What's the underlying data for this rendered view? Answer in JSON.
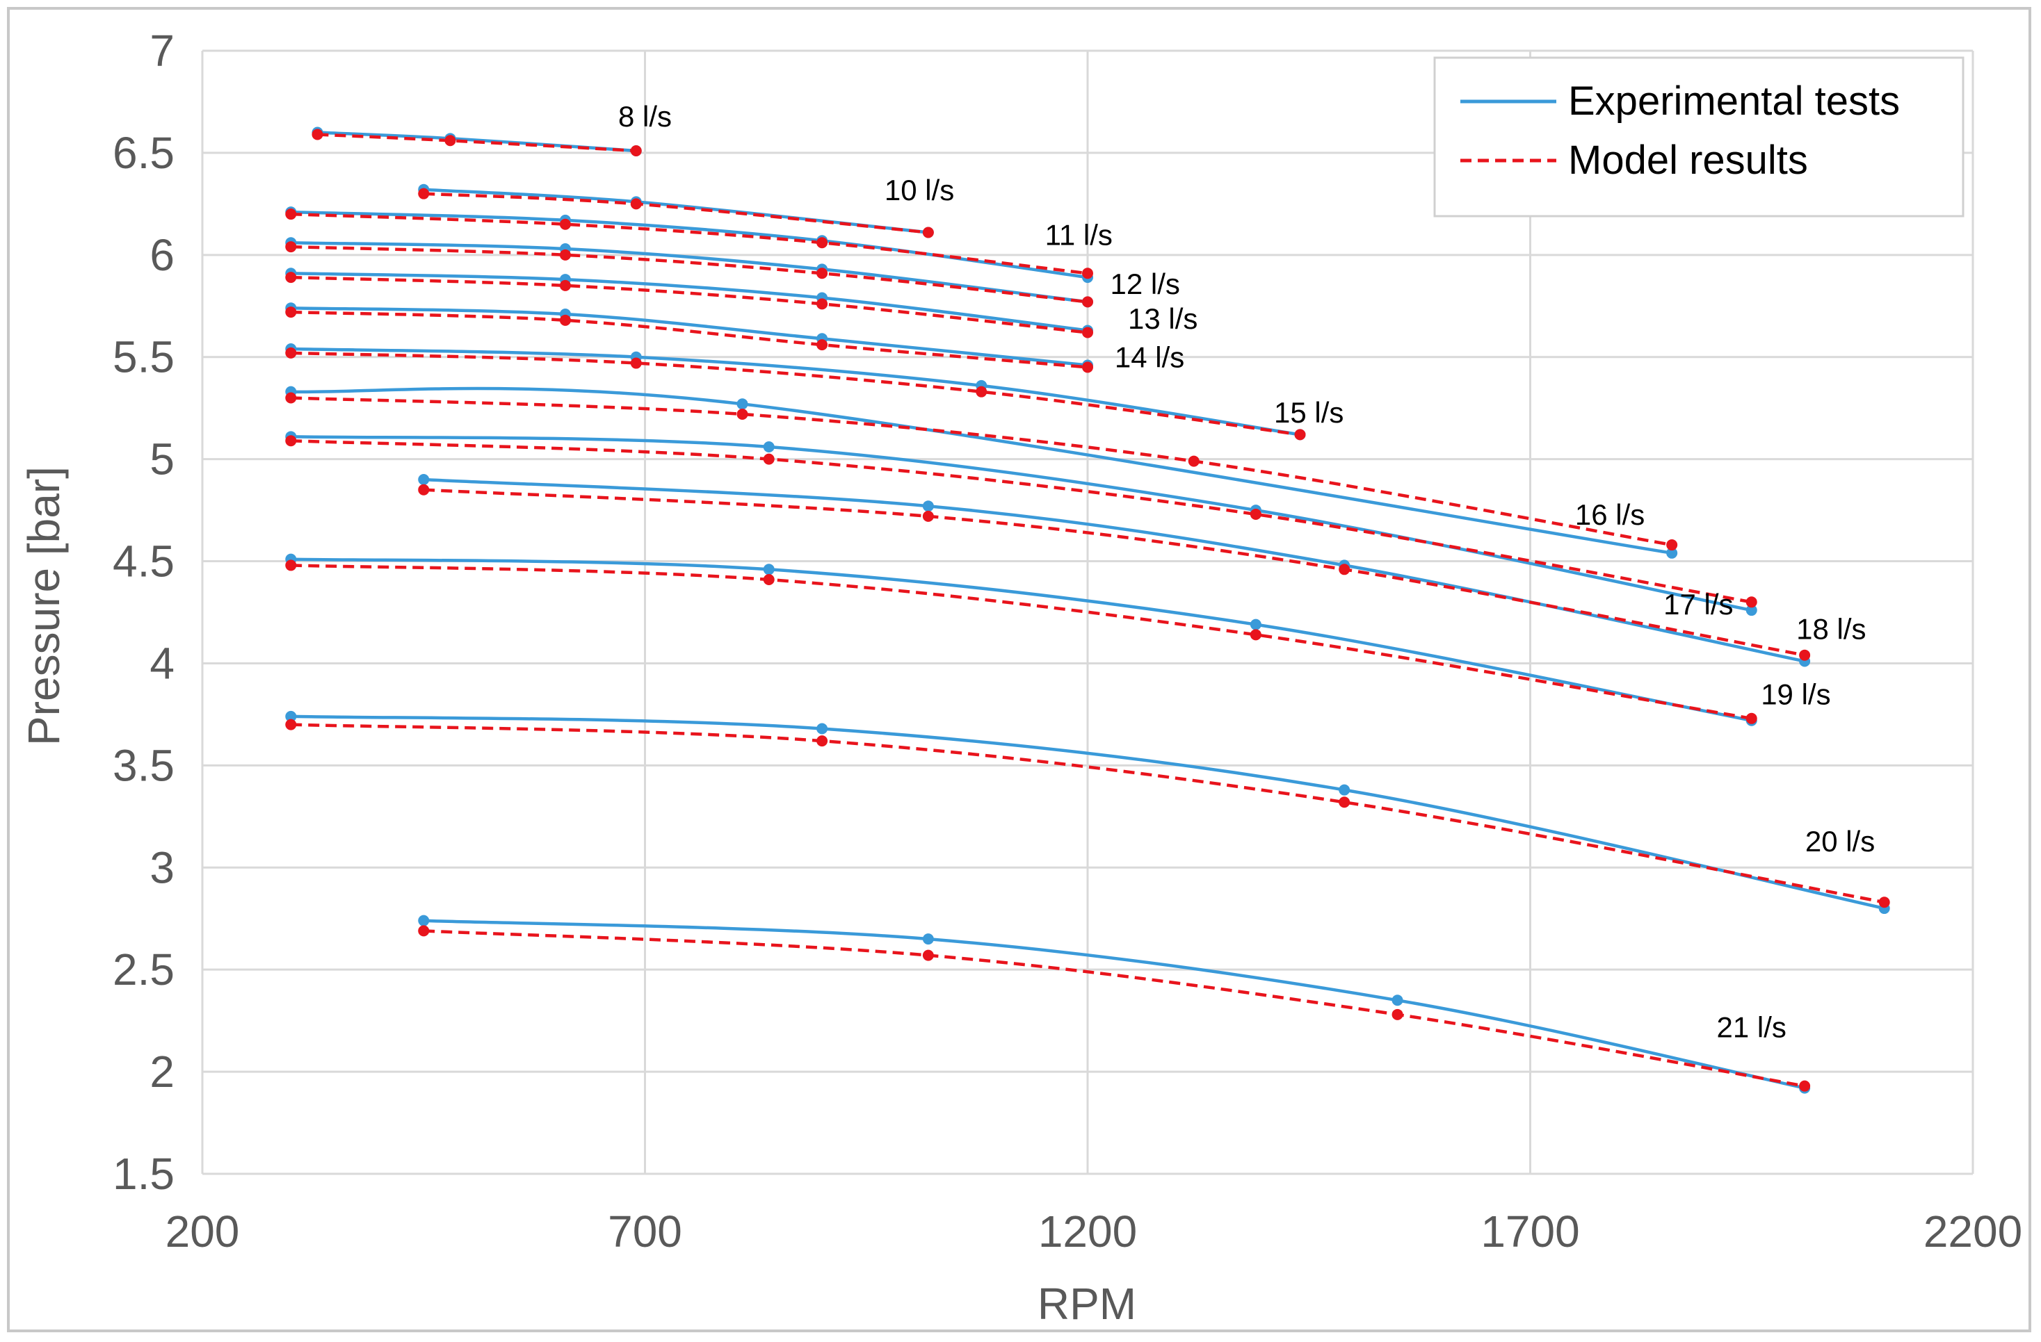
{
  "colors": {
    "experimental": "#3a9ad9",
    "model": "#e8141c",
    "grid": "#d9d9d9",
    "axis_text": "#595959",
    "frame": "#c8c8c8"
  },
  "legend": {
    "items": [
      {
        "label": "Experimental tests",
        "style": "solid",
        "color": "#3a9ad9"
      },
      {
        "label": "Model results",
        "style": "dashed",
        "color": "#e8141c"
      }
    ]
  },
  "chart_data": {
    "type": "line",
    "title": "",
    "xlabel": "RPM",
    "ylabel": "Pressure [bar]",
    "xlim": [
      200,
      2200
    ],
    "ylim": [
      1.5,
      7
    ],
    "xticks": [
      200,
      700,
      1200,
      1700,
      2200
    ],
    "yticks": [
      1.5,
      2,
      2.5,
      3,
      3.5,
      4,
      4.5,
      5,
      5.5,
      6,
      6.5,
      7
    ],
    "ytick_labels": [
      "1.5",
      "2",
      "2.5",
      "3",
      "3.5",
      "4",
      "4.5",
      "5",
      "5.5",
      "6",
      "6.5",
      "7"
    ],
    "xtick_labels": [
      "200",
      "700",
      "1200",
      "1700",
      "2200"
    ],
    "grid": true,
    "legend_position": "top-right",
    "series": [
      {
        "flow": "8 l/s",
        "label_at": [
          700,
          6.68
        ],
        "experimental": [
          [
            330,
            6.6
          ],
          [
            480,
            6.57
          ],
          [
            690,
            6.51
          ]
        ],
        "model": [
          [
            330,
            6.59
          ],
          [
            480,
            6.56
          ],
          [
            690,
            6.51
          ]
        ]
      },
      {
        "flow": "10 l/s",
        "label_at": [
          1010,
          6.32
        ],
        "experimental": [
          [
            450,
            6.32
          ],
          [
            690,
            6.26
          ],
          [
            1020,
            6.11
          ]
        ],
        "model": [
          [
            450,
            6.3
          ],
          [
            690,
            6.25
          ],
          [
            1020,
            6.11
          ]
        ]
      },
      {
        "flow": "11 l/s",
        "label_at": [
          1190,
          6.1
        ],
        "experimental": [
          [
            300,
            6.21
          ],
          [
            610,
            6.17
          ],
          [
            900,
            6.07
          ],
          [
            1200,
            5.89
          ]
        ],
        "model": [
          [
            300,
            6.2
          ],
          [
            610,
            6.15
          ],
          [
            900,
            6.06
          ],
          [
            1200,
            5.91
          ]
        ]
      },
      {
        "flow": "12 l/s",
        "label_at": [
          1265,
          5.86
        ],
        "experimental": [
          [
            300,
            6.06
          ],
          [
            610,
            6.03
          ],
          [
            900,
            5.93
          ],
          [
            1200,
            5.77
          ]
        ],
        "model": [
          [
            300,
            6.04
          ],
          [
            610,
            6.0
          ],
          [
            900,
            5.91
          ],
          [
            1200,
            5.77
          ]
        ]
      },
      {
        "flow": "13 l/s",
        "label_at": [
          1285,
          5.69
        ],
        "experimental": [
          [
            300,
            5.91
          ],
          [
            610,
            5.88
          ],
          [
            900,
            5.79
          ],
          [
            1200,
            5.63
          ]
        ],
        "model": [
          [
            300,
            5.89
          ],
          [
            610,
            5.85
          ],
          [
            900,
            5.76
          ],
          [
            1200,
            5.62
          ]
        ]
      },
      {
        "flow": "14 l/s",
        "label_at": [
          1270,
          5.5
        ],
        "experimental": [
          [
            300,
            5.74
          ],
          [
            610,
            5.71
          ],
          [
            900,
            5.59
          ],
          [
            1200,
            5.46
          ]
        ],
        "model": [
          [
            300,
            5.72
          ],
          [
            610,
            5.68
          ],
          [
            900,
            5.56
          ],
          [
            1200,
            5.45
          ]
        ]
      },
      {
        "flow": "15 l/s",
        "label_at": [
          1450,
          5.23
        ],
        "experimental": [
          [
            300,
            5.54
          ],
          [
            690,
            5.5
          ],
          [
            1080,
            5.36
          ],
          [
            1440,
            5.12
          ]
        ],
        "model": [
          [
            300,
            5.52
          ],
          [
            690,
            5.47
          ],
          [
            1080,
            5.33
          ],
          [
            1440,
            5.12
          ]
        ]
      },
      {
        "flow": "16 l/s",
        "label_at": [
          1790,
          4.73
        ],
        "experimental": [
          [
            300,
            5.33
          ],
          [
            810,
            5.27
          ],
          [
            1860,
            4.54
          ]
        ],
        "model": [
          [
            300,
            5.3
          ],
          [
            810,
            5.22
          ],
          [
            1320,
            4.99
          ],
          [
            1860,
            4.58
          ]
        ]
      },
      {
        "flow": "17 l/s",
        "label_at": [
          1890,
          4.29
        ],
        "experimental": [
          [
            300,
            5.11
          ],
          [
            840,
            5.06
          ],
          [
            1390,
            4.75
          ],
          [
            1950,
            4.26
          ]
        ],
        "model": [
          [
            300,
            5.09
          ],
          [
            840,
            5.0
          ],
          [
            1390,
            4.73
          ],
          [
            1950,
            4.3
          ]
        ]
      },
      {
        "flow": "18 l/s",
        "label_at": [
          2040,
          4.17
        ],
        "experimental": [
          [
            450,
            4.9
          ],
          [
            1020,
            4.77
          ],
          [
            1490,
            4.48
          ],
          [
            2010,
            4.01
          ]
        ],
        "model": [
          [
            450,
            4.85
          ],
          [
            1020,
            4.72
          ],
          [
            1490,
            4.46
          ],
          [
            2010,
            4.04
          ]
        ]
      },
      {
        "flow": "19 l/s",
        "label_at": [
          2000,
          3.85
        ],
        "experimental": [
          [
            300,
            4.51
          ],
          [
            840,
            4.46
          ],
          [
            1390,
            4.19
          ],
          [
            1950,
            3.72
          ]
        ],
        "model": [
          [
            300,
            4.48
          ],
          [
            840,
            4.41
          ],
          [
            1390,
            4.14
          ],
          [
            1950,
            3.73
          ]
        ]
      },
      {
        "flow": "20 l/s",
        "label_at": [
          2050,
          3.13
        ],
        "experimental": [
          [
            300,
            3.74
          ],
          [
            900,
            3.68
          ],
          [
            1490,
            3.38
          ],
          [
            2100,
            2.8
          ]
        ],
        "model": [
          [
            300,
            3.7
          ],
          [
            900,
            3.62
          ],
          [
            1490,
            3.32
          ],
          [
            2100,
            2.83
          ]
        ]
      },
      {
        "flow": "21 l/s",
        "label_at": [
          1950,
          2.22
        ],
        "experimental": [
          [
            450,
            2.74
          ],
          [
            1020,
            2.65
          ],
          [
            1550,
            2.35
          ],
          [
            2010,
            1.92
          ]
        ],
        "model": [
          [
            450,
            2.69
          ],
          [
            1020,
            2.57
          ],
          [
            1550,
            2.28
          ],
          [
            2010,
            1.93
          ]
        ]
      }
    ]
  }
}
